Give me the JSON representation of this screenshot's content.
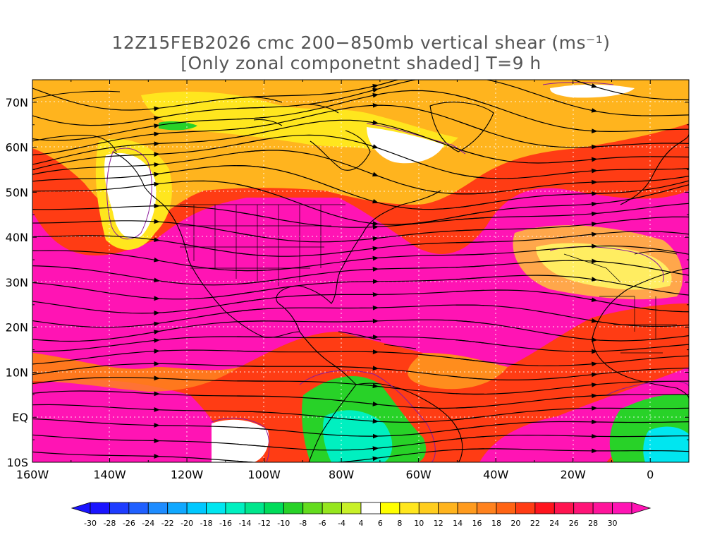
{
  "title": {
    "line1": "12Z15FEB2026 cmc 200−850mb vertical shear (ms⁻¹)",
    "line2": "[Only zonal componetnt shaded] T=9 h"
  },
  "map": {
    "lat_labels": [
      "70N",
      "60N",
      "50N",
      "40N",
      "30N",
      "20N",
      "10N",
      "EQ",
      "10S"
    ],
    "lon_labels": [
      "160W",
      "140W",
      "120W",
      "100W",
      "80W",
      "60W",
      "40W",
      "20W",
      "0"
    ],
    "lat_range": [
      -10,
      75
    ],
    "lon_range": [
      -160,
      10
    ]
  },
  "colorbar": {
    "labels": [
      "-30",
      "-28",
      "-26",
      "-24",
      "-22",
      "-20",
      "-18",
      "-16",
      "-14",
      "-12",
      "-10",
      "-8",
      "-6",
      "-4",
      "4",
      "6",
      "8",
      "10",
      "12",
      "14",
      "16",
      "18",
      "20",
      "22",
      "24",
      "26",
      "28",
      "30"
    ],
    "colors": [
      "#1a14ff",
      "#1e3cff",
      "#2060ff",
      "#1e8cff",
      "#10a8ff",
      "#00c8ff",
      "#00e6f0",
      "#00f0c0",
      "#00e68c",
      "#00dc5a",
      "#28d228",
      "#64dc1e",
      "#96e61e",
      "#c8f028",
      "#ffffff",
      "#ffff00",
      "#ffe61e",
      "#ffcd1e",
      "#ffb41e",
      "#ff9b1e",
      "#ff821e",
      "#ff6414",
      "#ff3c14",
      "#ff141e",
      "#ff1450",
      "#ff1478",
      "#ff149b",
      "#ff14b4"
    ]
  }
}
